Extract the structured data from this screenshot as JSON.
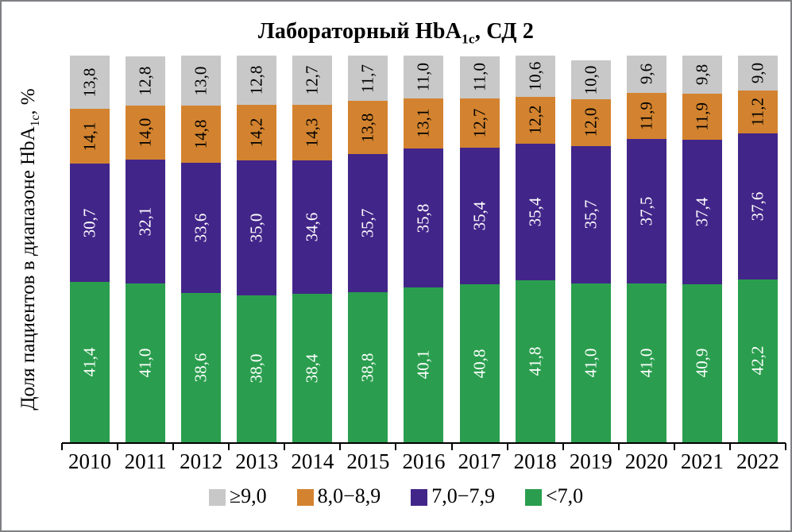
{
  "title": {
    "prefix": "Лабораторный HbA",
    "subscript": "1c",
    "suffix": ", СД 2"
  },
  "y_axis_label": {
    "prefix": "Доля пациентов в диапазоне HbA",
    "subscript": "1c",
    "suffix": ", %"
  },
  "colors": {
    "green": "#2A9E4E",
    "purple": "#422589",
    "orange": "#D3832F",
    "gray": "#C8C8C8",
    "axis": "#000000",
    "frame_border": "#7E8083"
  },
  "legend": [
    {
      "label": "≥9,0",
      "color": "#C8C8C8"
    },
    {
      "label": "8,0−8,9",
      "color": "#D3832F"
    },
    {
      "label": "7,0−7,9",
      "color": "#422589"
    },
    {
      "label": "<7,0",
      "color": "#2A9E4E"
    }
  ],
  "chart_data": {
    "type": "bar",
    "stacked": true,
    "title": "Лабораторный HbA1c, СД 2",
    "ylabel": "Доля пациентов в диапазоне HbA1c, %",
    "xlabel": "",
    "ylim": [
      0,
      100
    ],
    "grid": false,
    "legend_position": "bottom",
    "decimal_separator": ",",
    "categories": [
      "2010",
      "2011",
      "2012",
      "2013",
      "2014",
      "2015",
      "2016",
      "2017",
      "2018",
      "2019",
      "2020",
      "2021",
      "2022"
    ],
    "series": [
      {
        "name": "<7,0",
        "color": "#2A9E4E",
        "label_color": "#FFFFFF",
        "values": [
          41.4,
          41.0,
          38.6,
          38.0,
          38.4,
          38.8,
          40.1,
          40.8,
          41.8,
          41.0,
          41.0,
          40.9,
          42.2
        ]
      },
      {
        "name": "7,0−7,9",
        "color": "#422589",
        "label_color": "#FFFFFF",
        "values": [
          30.7,
          32.1,
          33.6,
          35.0,
          34.6,
          35.7,
          35.8,
          35.4,
          35.4,
          35.7,
          37.5,
          37.4,
          37.6
        ]
      },
      {
        "name": "8,0−8,9",
        "color": "#D3832F",
        "label_color": "#000000",
        "values": [
          14.1,
          14.0,
          14.8,
          14.2,
          14.3,
          13.8,
          13.1,
          12.7,
          12.2,
          12.0,
          11.9,
          11.9,
          11.2
        ]
      },
      {
        "name": "≥9,0",
        "color": "#C8C8C8",
        "label_color": "#000000",
        "values": [
          13.8,
          12.8,
          13.0,
          12.8,
          12.7,
          11.7,
          11.0,
          11.0,
          10.6,
          10.0,
          9.6,
          9.8,
          9.0
        ]
      }
    ]
  }
}
